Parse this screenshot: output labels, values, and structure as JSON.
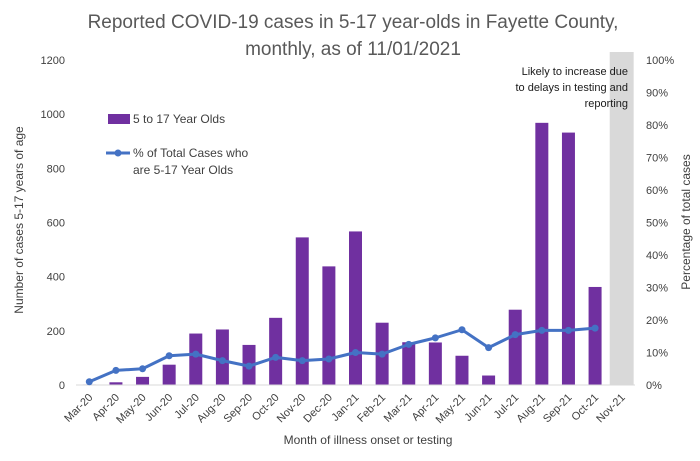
{
  "chart_data": {
    "type": "bar",
    "title_lines": [
      "Reported COVID-19 cases in 5-17 year-olds in Fayette County,",
      "monthly, as of 11/01/2021"
    ],
    "categories": [
      "Mar-20",
      "Apr-20",
      "May-20",
      "Jun-20",
      "Jul-20",
      "Aug-20",
      "Sep-20",
      "Oct-20",
      "Nov-20",
      "Dec-20",
      "Jan-21",
      "Feb-21",
      "Mar-21",
      "Apr-21",
      "May-21",
      "Jun-21",
      "Jul-21",
      "Aug-21",
      "Sep-21",
      "Oct-21",
      "Nov-21"
    ],
    "xlabel": "Month of illness onset or testing",
    "ylabel": "Number of cases 5-17 years of age",
    "ylabel_right": "Percentage of total cases",
    "ylim": [
      0,
      1200
    ],
    "ylim_right": [
      0,
      100
    ],
    "yticks": [
      "0",
      "200",
      "400",
      "600",
      "800",
      "1000",
      "1200"
    ],
    "yticks_right": [
      "0%",
      "10%",
      "20%",
      "30%",
      "40%",
      "50%",
      "60%",
      "70%",
      "80%",
      "90%",
      "100%"
    ],
    "series": [
      {
        "name": "5 to 17 Year Olds",
        "type": "bar",
        "color": "#7030a0",
        "values": [
          2,
          10,
          30,
          75,
          190,
          205,
          148,
          248,
          545,
          438,
          567,
          230,
          158,
          157,
          108,
          35,
          278,
          968,
          932,
          362,
          null
        ]
      },
      {
        "name_lines": [
          "% of Total Cases who",
          "are 5-17 Year Olds"
        ],
        "type": "line",
        "axis": "right",
        "color": "#4472c4",
        "values": [
          1,
          4.5,
          5,
          9,
          9.5,
          7.5,
          5.8,
          8.5,
          7.5,
          8,
          10,
          9.5,
          12.5,
          14.5,
          17,
          11.5,
          15.5,
          16.8,
          16.8,
          17.5,
          null
        ]
      }
    ],
    "annotation": {
      "lines": [
        "Likely to increase due",
        "to delays in testing and",
        "reporting"
      ],
      "shaded_category": "Nov-21",
      "shade_color": "#d9d9d9"
    },
    "legend_position": "upper-left",
    "grid": false
  }
}
